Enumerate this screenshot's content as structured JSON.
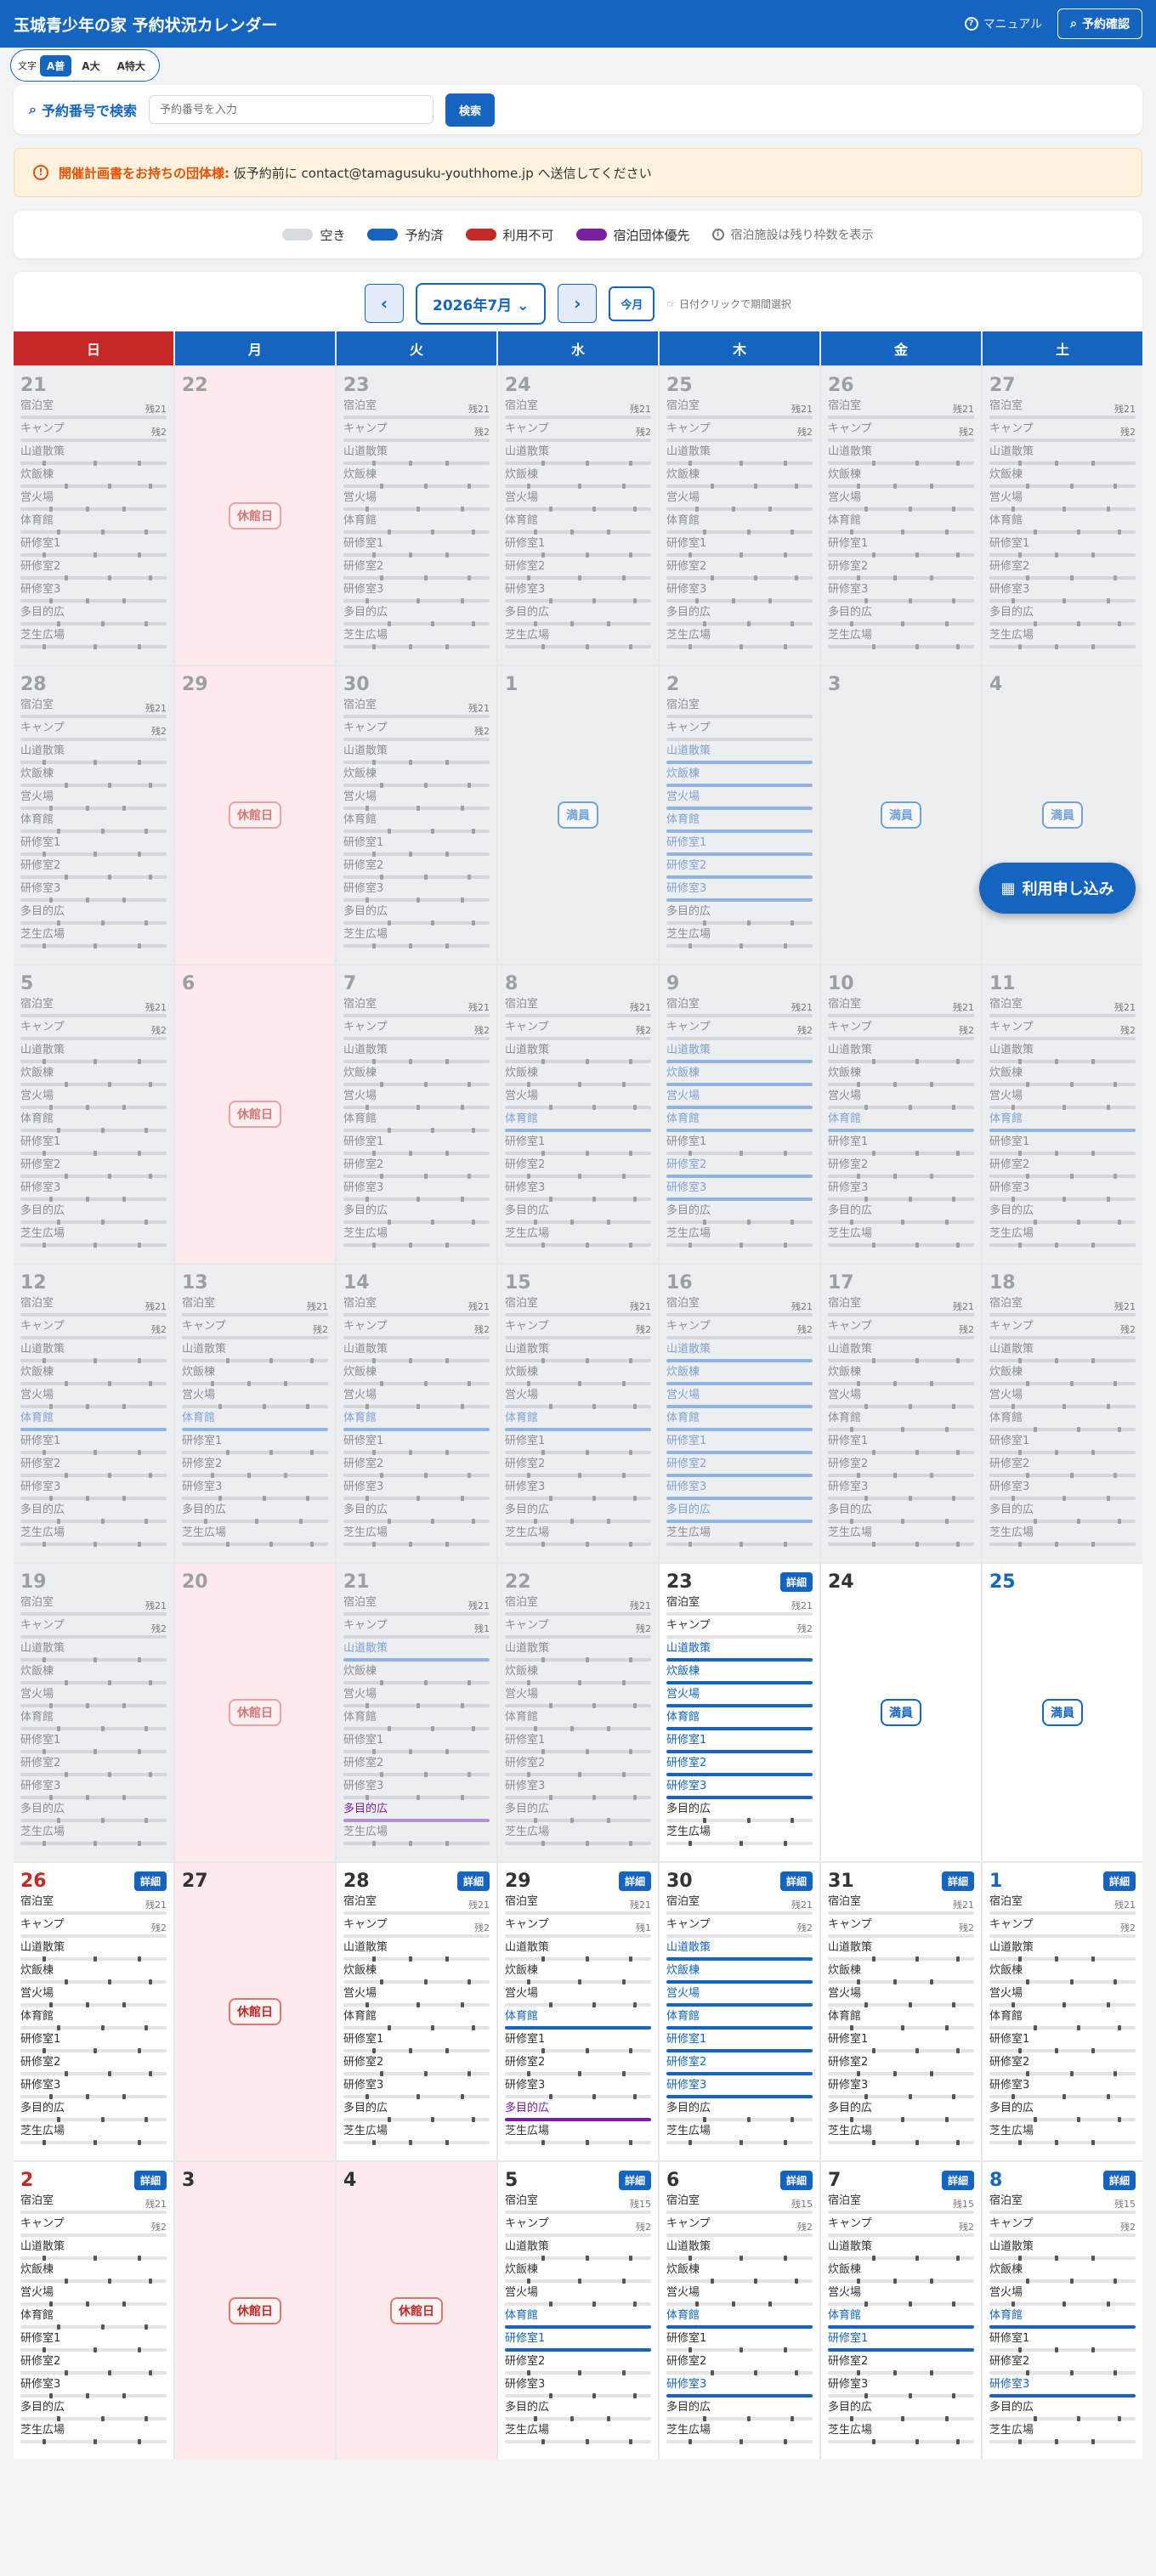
{
  "header": {
    "title": "玉城青少年の家 予約状況カレンダー",
    "manual": "マニュアル",
    "check_btn": "予約確認"
  },
  "font_size": {
    "label": "文字",
    "options": [
      "A普",
      "A大",
      "A特大"
    ],
    "selected": "A普"
  },
  "search": {
    "label": "予約番号で検索",
    "placeholder": "予約番号を入力",
    "button": "検索"
  },
  "notice": {
    "bold": "開催計画書をお持ちの団体様:",
    "text": "仮予約前に contact@tamagusuku-youthhome.jp へ送信してください"
  },
  "legend": {
    "items": [
      {
        "label": "空き",
        "color": "#d8dbe0"
      },
      {
        "label": "予約済",
        "color": "#1565c0"
      },
      {
        "label": "利用不可",
        "color": "#c62828"
      },
      {
        "label": "宿泊団体優先",
        "color": "#7b1fa2"
      }
    ],
    "note": "宿泊施設は残り枠数を表示"
  },
  "nav": {
    "prev": "‹",
    "month": "2026年7月",
    "next": "›",
    "today": "今月",
    "hint": "日付クリックで期間選択"
  },
  "weekdays": [
    "日",
    "月",
    "火",
    "水",
    "木",
    "金",
    "土"
  ],
  "facilities": [
    "宿泊室",
    "キャンプ",
    "山道散策",
    "炊飯棟",
    "営火場",
    "体育館",
    "研修室1",
    "研修室2",
    "研修室3",
    "多目的広",
    "芝生広場"
  ],
  "labels": {
    "closed": "休館日",
    "full": "満員",
    "detail": "詳細"
  },
  "fab": "利用申し込み",
  "weeks": [
    [
      {
        "d": "21",
        "type": "open",
        "past": true,
        "red": true,
        "caps": [
          "残21",
          "残2"
        ],
        "bk": [],
        "pr": []
      },
      {
        "d": "22",
        "type": "closed",
        "past": true
      },
      {
        "d": "23",
        "type": "open",
        "past": true,
        "caps": [
          "残21",
          "残2"
        ],
        "bk": [],
        "pr": []
      },
      {
        "d": "24",
        "type": "open",
        "past": true,
        "caps": [
          "残21",
          "残2"
        ],
        "bk": [],
        "pr": []
      },
      {
        "d": "25",
        "type": "open",
        "past": true,
        "caps": [
          "残21",
          "残2"
        ],
        "bk": [],
        "pr": []
      },
      {
        "d": "26",
        "type": "open",
        "past": true,
        "caps": [
          "残21",
          "残2"
        ],
        "bk": [],
        "pr": []
      },
      {
        "d": "27",
        "type": "open",
        "past": true,
        "blue": true,
        "caps": [
          "残21",
          "残2"
        ],
        "bk": [],
        "pr": []
      }
    ],
    [
      {
        "d": "28",
        "type": "open",
        "past": true,
        "red": true,
        "caps": [
          "残21",
          "残2"
        ],
        "bk": [],
        "pr": []
      },
      {
        "d": "29",
        "type": "closed",
        "past": true
      },
      {
        "d": "30",
        "type": "open",
        "past": true,
        "caps": [
          "残21",
          "残2"
        ],
        "bk": [],
        "pr": []
      },
      {
        "d": "1",
        "type": "full",
        "past": true
      },
      {
        "d": "2",
        "type": "open",
        "past": true,
        "caps": [
          "",
          ""
        ],
        "bk": [
          2,
          3,
          4,
          5,
          6,
          7,
          8
        ],
        "pr": []
      },
      {
        "d": "3",
        "type": "full",
        "past": true
      },
      {
        "d": "4",
        "type": "full",
        "past": true,
        "blue": true
      }
    ],
    [
      {
        "d": "5",
        "type": "open",
        "past": true,
        "red": true,
        "caps": [
          "残21",
          "残2"
        ],
        "bk": [],
        "pr": []
      },
      {
        "d": "6",
        "type": "closed",
        "past": true
      },
      {
        "d": "7",
        "type": "open",
        "past": true,
        "caps": [
          "残21",
          "残2"
        ],
        "bk": [],
        "pr": []
      },
      {
        "d": "8",
        "type": "open",
        "past": true,
        "caps": [
          "残21",
          "残2"
        ],
        "bk": [
          5
        ],
        "pr": []
      },
      {
        "d": "9",
        "type": "open",
        "past": true,
        "caps": [
          "残21",
          "残2"
        ],
        "bk": [
          2,
          3,
          4,
          5,
          7,
          8
        ],
        "pr": []
      },
      {
        "d": "10",
        "type": "open",
        "past": true,
        "caps": [
          "残21",
          "残2"
        ],
        "bk": [
          5
        ],
        "pr": []
      },
      {
        "d": "11",
        "type": "open",
        "past": true,
        "blue": true,
        "caps": [
          "残21",
          "残2"
        ],
        "bk": [
          5
        ],
        "pr": []
      }
    ],
    [
      {
        "d": "12",
        "type": "open",
        "past": true,
        "red": true,
        "caps": [
          "残21",
          "残2"
        ],
        "bk": [
          5
        ],
        "pr": []
      },
      {
        "d": "13",
        "type": "open",
        "past": true,
        "caps": [
          "残21",
          "残2"
        ],
        "bk": [
          5
        ],
        "pr": []
      },
      {
        "d": "14",
        "type": "open",
        "past": true,
        "caps": [
          "残21",
          "残2"
        ],
        "bk": [
          5
        ],
        "pr": []
      },
      {
        "d": "15",
        "type": "open",
        "past": true,
        "caps": [
          "残21",
          "残2"
        ],
        "bk": [
          5
        ],
        "pr": []
      },
      {
        "d": "16",
        "type": "open",
        "past": true,
        "caps": [
          "残21",
          "残2"
        ],
        "bk": [
          2,
          3,
          4,
          5,
          6,
          7,
          8,
          9
        ],
        "pr": []
      },
      {
        "d": "17",
        "type": "open",
        "past": true,
        "caps": [
          "残21",
          "残2"
        ],
        "bk": [],
        "pr": []
      },
      {
        "d": "18",
        "type": "open",
        "past": true,
        "blue": true,
        "caps": [
          "残21",
          "残2"
        ],
        "bk": [],
        "pr": []
      }
    ],
    [
      {
        "d": "19",
        "type": "open",
        "past": true,
        "red": true,
        "caps": [
          "残21",
          "残2"
        ],
        "bk": [],
        "pr": []
      },
      {
        "d": "20",
        "type": "closed",
        "past": true
      },
      {
        "d": "21",
        "type": "open",
        "past": true,
        "caps": [
          "残21",
          "残1"
        ],
        "bk": [
          2
        ],
        "pr": [
          9
        ]
      },
      {
        "d": "22",
        "type": "open",
        "past": true,
        "caps": [
          "残21",
          "残2"
        ],
        "bk": [],
        "pr": []
      },
      {
        "d": "23",
        "type": "open",
        "past": false,
        "detail": true,
        "caps": [
          "残21",
          "残2"
        ],
        "bk": [
          2,
          3,
          4,
          5,
          6,
          7,
          8
        ],
        "pr": []
      },
      {
        "d": "24",
        "type": "full",
        "past": false
      },
      {
        "d": "25",
        "type": "full",
        "past": false,
        "blue": true
      }
    ],
    [
      {
        "d": "26",
        "type": "open",
        "past": false,
        "red": true,
        "detail": true,
        "caps": [
          "残21",
          "残2"
        ],
        "bk": [],
        "pr": []
      },
      {
        "d": "27",
        "type": "closed",
        "past": false
      },
      {
        "d": "28",
        "type": "open",
        "past": false,
        "detail": true,
        "caps": [
          "残21",
          "残2"
        ],
        "bk": [],
        "pr": []
      },
      {
        "d": "29",
        "type": "open",
        "past": false,
        "detail": true,
        "caps": [
          "残21",
          "残1"
        ],
        "bk": [
          5
        ],
        "pr": [
          9
        ]
      },
      {
        "d": "30",
        "type": "open",
        "past": false,
        "detail": true,
        "caps": [
          "残21",
          "残2"
        ],
        "bk": [
          2,
          3,
          4,
          5,
          6,
          7,
          8
        ],
        "pr": []
      },
      {
        "d": "31",
        "type": "open",
        "past": false,
        "detail": true,
        "caps": [
          "残21",
          "残2"
        ],
        "bk": [],
        "pr": []
      },
      {
        "d": "1",
        "type": "open",
        "past": false,
        "blue": true,
        "detail": true,
        "caps": [
          "残21",
          "残2"
        ],
        "bk": [],
        "pr": []
      }
    ],
    [
      {
        "d": "2",
        "type": "open",
        "past": false,
        "red": true,
        "detail": true,
        "caps": [
          "残21",
          "残2"
        ],
        "bk": [],
        "pr": []
      },
      {
        "d": "3",
        "type": "closed",
        "past": false
      },
      {
        "d": "4",
        "type": "closed",
        "past": false
      },
      {
        "d": "5",
        "type": "open",
        "past": false,
        "detail": true,
        "caps": [
          "残15",
          "残2"
        ],
        "bk": [
          5,
          6
        ],
        "pr": []
      },
      {
        "d": "6",
        "type": "open",
        "past": false,
        "detail": true,
        "caps": [
          "残15",
          "残2"
        ],
        "bk": [
          5,
          8
        ],
        "pr": []
      },
      {
        "d": "7",
        "type": "open",
        "past": false,
        "detail": true,
        "caps": [
          "残15",
          "残2"
        ],
        "bk": [
          5,
          6
        ],
        "pr": []
      },
      {
        "d": "8",
        "type": "open",
        "past": false,
        "blue": true,
        "detail": true,
        "caps": [
          "残15",
          "残2"
        ],
        "bk": [
          5,
          8
        ],
        "pr": []
      }
    ]
  ]
}
